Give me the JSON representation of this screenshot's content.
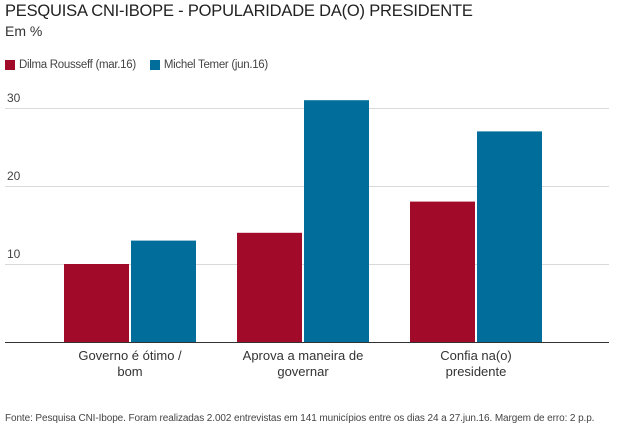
{
  "header": {
    "title": "PESQUISA CNI-IBOPE - POPULARIDADE DA(O) PRESIDENTE",
    "subtitle": "Em %"
  },
  "legend": [
    {
      "label": "Dilma Rousseff (mar.16)",
      "color": "#a10a28"
    },
    {
      "label": "Michel Temer (jun.16)",
      "color": "#006d9a"
    }
  ],
  "chart_data": {
    "type": "bar",
    "title": "PESQUISA CNI-IBOPE - POPULARIDADE DA(O) PRESIDENTE",
    "subtitle": "Em %",
    "categories": [
      [
        "Governo é ótimo /",
        "bom"
      ],
      [
        "Aprova a maneira de",
        "governar"
      ],
      [
        "Confia na(o)",
        "presidente"
      ]
    ],
    "series": [
      {
        "name": "Dilma Rousseff (mar.16)",
        "color": "#a10a28",
        "values": [
          10,
          14,
          18
        ]
      },
      {
        "name": "Michel Temer (jun.16)",
        "color": "#006d9a",
        "values": [
          13,
          31,
          27
        ]
      }
    ],
    "yticks": [
      10,
      20,
      30
    ],
    "ylim": [
      0,
      32
    ],
    "grid": true,
    "legend_position": "top-left",
    "xlabel": "",
    "ylabel": ""
  },
  "footer": {
    "source": "Fonte: Pesquisa CNI-Ibope. Foram realizadas 2.002 entrevistas em 141 municípios entre os dias 24 a 27.jun.16. Margem de erro: 2 p.p."
  }
}
